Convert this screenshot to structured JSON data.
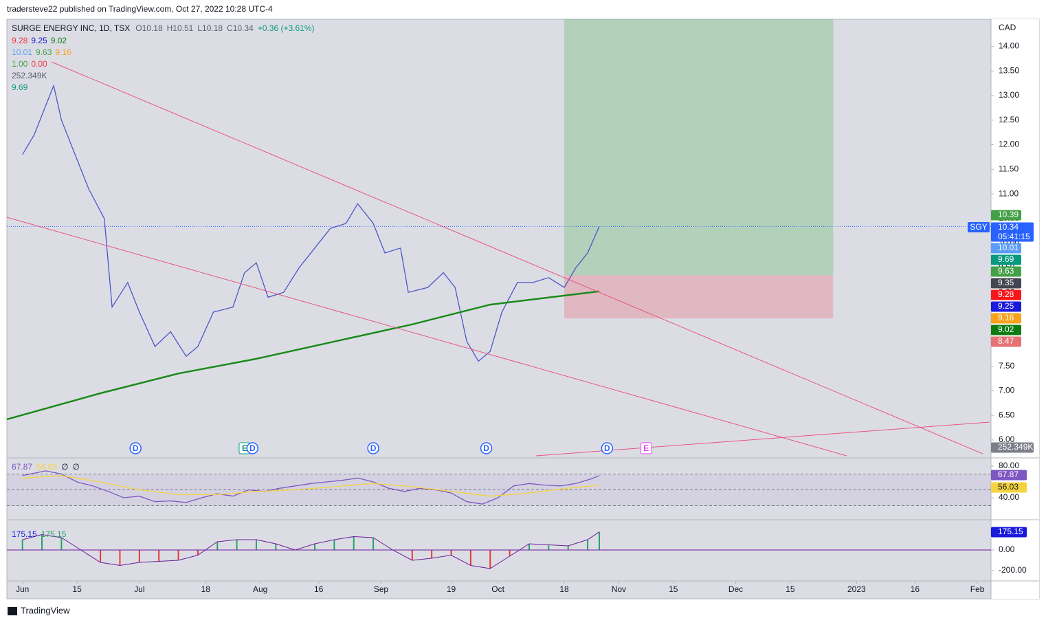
{
  "header": {
    "publisher": "tradersteve22 published on TradingView.com, Oct 27, 2022 10:28 UTC-4"
  },
  "legend": {
    "symbol": "SURGE ENERGY INC, 1D, TSX",
    "ohlc": [
      "O10.18",
      "H10.51",
      "L10.18",
      "C10.34",
      "+0.36 (+3.61%)"
    ],
    "rows": [
      [
        {
          "text": "9.28",
          "color": "#f23645"
        },
        {
          "text": "9.25",
          "color": "#1a1adb"
        },
        {
          "text": "9.02",
          "color": "#0f7c12"
        }
      ],
      [
        {
          "text": "10.01",
          "color": "#5b9cf6"
        },
        {
          "text": "9.63",
          "color": "#43a047"
        },
        {
          "text": "9.16",
          "color": "#f7a21b"
        }
      ],
      [
        {
          "text": "1.00",
          "color": "#43a047"
        },
        {
          "text": "0.00",
          "color": "#f23645"
        }
      ],
      [
        {
          "text": "252.349K",
          "color": "#5d606b"
        }
      ],
      [
        {
          "text": "9.69",
          "color": "#089981"
        }
      ]
    ]
  },
  "price_scale": {
    "currency": "CAD",
    "ticker": "SGY",
    "countdown": "05:41:15",
    "labels": [
      {
        "text": "10.39",
        "color": "#43a047"
      },
      {
        "text": "10.34",
        "color": "#2962ff"
      },
      {
        "text": "10.01",
        "color": "#5b9cf6"
      },
      {
        "text": "9.69",
        "color": "#089981"
      },
      {
        "text": "9.63",
        "color": "#43a047"
      },
      {
        "text": "9.35",
        "color": "#434651"
      },
      {
        "text": "9.28",
        "color": "#f7171b"
      },
      {
        "text": "9.25",
        "color": "#1a1adb"
      },
      {
        "text": "9.16",
        "color": "#f7a21b"
      },
      {
        "text": "9.02",
        "color": "#0f7c12"
      },
      {
        "text": "8.47",
        "color": "#e57373"
      },
      {
        "text": "252.349K",
        "color": "#7c7f8a"
      }
    ]
  },
  "footer": {
    "brand": "TradingView"
  },
  "chart_data": [
    {
      "type": "line",
      "xlim": [
        -4,
        248.5
      ],
      "ylim": [
        5.65,
        14.55
      ],
      "xticks": [
        {
          "value": 0,
          "label": "Jun"
        },
        {
          "value": 14,
          "label": "15"
        },
        {
          "value": 30,
          "label": "Jul"
        },
        {
          "value": 47,
          "label": "18"
        },
        {
          "value": 61,
          "label": "Aug"
        },
        {
          "value": 76,
          "label": "16"
        },
        {
          "value": 92,
          "label": "Sep"
        },
        {
          "value": 110,
          "label": "19"
        },
        {
          "value": 122,
          "label": "Oct"
        },
        {
          "value": 139,
          "label": "18"
        },
        {
          "value": 153,
          "label": "Nov"
        },
        {
          "value": 167,
          "label": "15"
        },
        {
          "value": 183,
          "label": "Dec"
        },
        {
          "value": 197,
          "label": "15"
        },
        {
          "value": 214,
          "label": "2023"
        },
        {
          "value": 229,
          "label": "16"
        },
        {
          "value": 245,
          "label": "Feb"
        }
      ],
      "yticks": [
        {
          "value": 6,
          "label": "6.00"
        },
        {
          "value": 6.5,
          "label": "6.50"
        },
        {
          "value": 7,
          "label": "7.00"
        },
        {
          "value": 7.5,
          "label": "7.50"
        },
        {
          "value": 8,
          "label": "8.00"
        },
        {
          "value": 8.5,
          "label": "8.50"
        },
        {
          "value": 9,
          "label": "9.00"
        },
        {
          "value": 9.5,
          "label": "9.50"
        },
        {
          "value": 10,
          "label": "10.00"
        },
        {
          "value": 10.5,
          "label": "10.50"
        },
        {
          "value": 11,
          "label": "11.00"
        },
        {
          "value": 11.5,
          "label": "11.50"
        },
        {
          "value": 12,
          "label": "12.00"
        },
        {
          "value": 12.5,
          "label": "12.50"
        },
        {
          "value": 13,
          "label": "13.00"
        },
        {
          "value": 13.5,
          "label": "13.50"
        },
        {
          "value": 14,
          "label": "14.00"
        }
      ],
      "series": [
        {
          "color": "#4a56c8",
          "x": [
            0,
            3,
            6,
            8,
            10,
            14,
            17,
            21,
            23,
            27,
            30,
            34,
            38,
            42,
            45,
            49,
            54,
            57,
            60,
            63,
            67,
            71,
            75,
            79,
            83,
            86,
            90,
            93,
            97,
            99,
            104,
            108,
            111,
            114,
            117,
            120,
            123,
            127,
            131,
            135,
            139,
            142,
            145,
            148
          ],
          "values": [
            11.8,
            12.2,
            12.8,
            13.2,
            12.5,
            11.7,
            11.1,
            10.5,
            8.7,
            9.2,
            8.6,
            7.9,
            8.2,
            7.7,
            7.9,
            8.6,
            8.7,
            9.4,
            9.6,
            8.9,
            9.0,
            9.5,
            9.9,
            10.3,
            10.4,
            10.8,
            10.4,
            9.8,
            9.9,
            9.0,
            9.1,
            9.4,
            9.1,
            8.0,
            7.6,
            7.8,
            8.6,
            9.2,
            9.2,
            9.3,
            9.1,
            9.5,
            9.8,
            10.34
          ]
        },
        {
          "color": "#1b8a1b",
          "x": [
            -4,
            20,
            40,
            60,
            80,
            100,
            120,
            148
          ],
          "values": [
            6.42,
            6.95,
            7.35,
            7.65,
            8.0,
            8.35,
            8.75,
            9.02
          ]
        }
      ],
      "position": {
        "x": [
          139,
          208
        ],
        "target": 14.55,
        "entry": 9.35,
        "stop": 8.47
      },
      "events": [
        {
          "x": 29,
          "label": "D"
        },
        {
          "x": 57,
          "label": "E"
        },
        {
          "x": 59,
          "label": "D"
        },
        {
          "x": 90,
          "label": "D"
        },
        {
          "x": 119,
          "label": "D"
        },
        {
          "x": 150,
          "label": "D"
        },
        {
          "x": 160,
          "label": "E"
        }
      ]
    },
    {
      "type": "line",
      "xlim": [
        -4,
        248.5
      ],
      "ylim": [
        13,
        87
      ],
      "yticks": [
        {
          "value": 80,
          "label": "80.00"
        },
        {
          "value": 40,
          "label": "40.00"
        }
      ],
      "bands": [
        70,
        50,
        30
      ],
      "legend": [
        "67.87",
        "56.03",
        "∅",
        "∅"
      ],
      "last_labels": [
        {
          "text": "67.87",
          "color": "#7e57c2"
        },
        {
          "text": "56.03",
          "color": "#f5d33f"
        }
      ],
      "series": [
        {
          "color": "#7e57c2",
          "x": [
            0,
            6,
            10,
            14,
            18,
            22,
            26,
            30,
            34,
            38,
            42,
            46,
            50,
            54,
            58,
            62,
            66,
            70,
            74,
            78,
            82,
            86,
            90,
            94,
            98,
            102,
            106,
            110,
            114,
            118,
            122,
            126,
            130,
            134,
            138,
            142,
            146,
            148
          ],
          "values": [
            68,
            74,
            70,
            60,
            55,
            48,
            40,
            42,
            35,
            36,
            34,
            40,
            45,
            42,
            50,
            48,
            52,
            55,
            58,
            60,
            62,
            65,
            60,
            52,
            48,
            52,
            50,
            46,
            35,
            32,
            40,
            55,
            58,
            56,
            55,
            58,
            64,
            68
          ]
        },
        {
          "color": "#f5d33f",
          "x": [
            0,
            10,
            20,
            30,
            40,
            50,
            60,
            70,
            80,
            90,
            100,
            110,
            120,
            130,
            140,
            148
          ],
          "values": [
            65,
            68,
            60,
            50,
            44,
            44,
            48,
            50,
            54,
            58,
            54,
            48,
            42,
            46,
            52,
            56
          ]
        }
      ]
    },
    {
      "type": "bar",
      "xlim": [
        -4,
        248.5
      ],
      "ylim": [
        -320,
        253
      ],
      "yticks": [
        {
          "value": 0,
          "label": "0.00"
        },
        {
          "value": -200,
          "label": "-200.00"
        }
      ],
      "legend": [
        "175.15",
        "175.15"
      ],
      "last_labels": [
        {
          "text": "175.15",
          "color": "#1a1adb"
        }
      ],
      "x": [
        0,
        5,
        10,
        15,
        20,
        25,
        30,
        35,
        40,
        45,
        50,
        55,
        60,
        65,
        70,
        75,
        80,
        85,
        90,
        95,
        100,
        105,
        110,
        115,
        120,
        125,
        130,
        135,
        140,
        145,
        148
      ],
      "values": [
        100,
        150,
        120,
        0,
        -120,
        -150,
        -120,
        -110,
        -100,
        -50,
        80,
        100,
        100,
        60,
        0,
        60,
        100,
        130,
        120,
        0,
        -100,
        -80,
        -50,
        -150,
        -180,
        -60,
        60,
        50,
        40,
        100,
        175.15
      ],
      "colors": {
        "up": "#26a269",
        "down": "#e53935",
        "line": "#6a1b9a"
      }
    }
  ]
}
